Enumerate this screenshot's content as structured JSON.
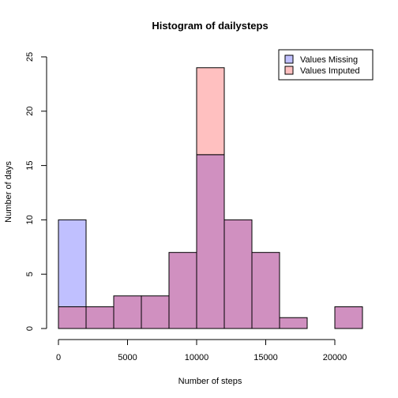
{
  "chart_data": {
    "type": "bar",
    "title": "Histogram of dailysteps",
    "xlabel": "Number of steps",
    "ylabel": "Number of days",
    "xlim": [
      0,
      22000
    ],
    "ylim": [
      0,
      25
    ],
    "xticks": [
      "0",
      "5000",
      "10000",
      "15000",
      "20000"
    ],
    "yticks": [
      "0",
      "5",
      "10",
      "15",
      "20",
      "25"
    ],
    "bin_edges": [
      0,
      2000,
      4000,
      6000,
      8000,
      10000,
      12000,
      14000,
      16000,
      18000,
      20000,
      22000
    ],
    "series": [
      {
        "name": "Values Missing",
        "color": "#c0c0ff",
        "values": [
          10,
          2,
          3,
          3,
          7,
          16,
          10,
          7,
          1,
          0,
          2
        ]
      },
      {
        "name": "Values Imputed",
        "color": "#ffc0c0",
        "values": [
          2,
          2,
          3,
          3,
          7,
          24,
          10,
          7,
          1,
          0,
          2
        ]
      }
    ],
    "overlap_color": "#d090c0",
    "legend_position": "top-right",
    "grid": false
  }
}
